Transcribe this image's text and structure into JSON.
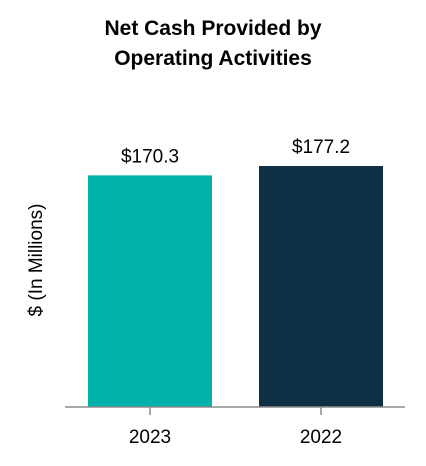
{
  "chart_data": {
    "type": "bar",
    "title_lines": [
      "Net Cash Provided by",
      "Operating Activities"
    ],
    "xlabel": "",
    "ylabel": "$ (In Millions)",
    "categories": [
      "2023",
      "2022"
    ],
    "values": [
      170.3,
      177.2
    ],
    "data_labels": [
      "$170.3",
      "$177.2"
    ],
    "colors": [
      "#00b2a9",
      "#0f2f45"
    ],
    "ylim": [
      0,
      177.2
    ],
    "grid": false,
    "legend": "none"
  }
}
